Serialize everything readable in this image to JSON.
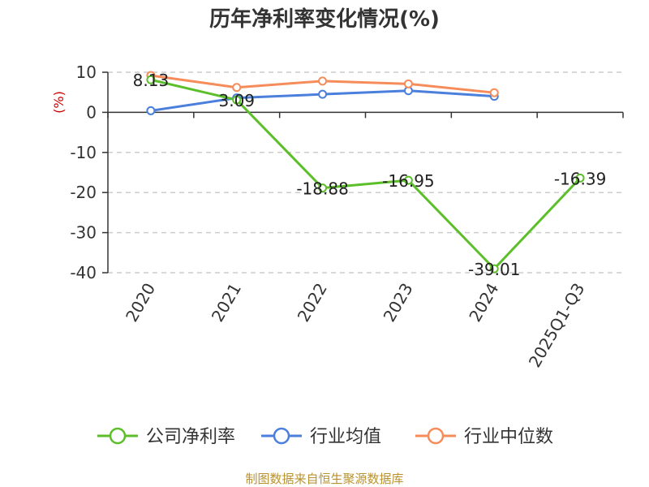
{
  "chart_data": {
    "type": "line",
    "title": "历年净利率变化情况(%)",
    "ylabel": "(%)",
    "categories": [
      "2020",
      "2021",
      "2022",
      "2023",
      "2024",
      "2025Q1-Q3"
    ],
    "ylim": [
      -40,
      10
    ],
    "yticks": [
      10,
      0,
      -10,
      -20,
      -30,
      -40
    ],
    "grid": true,
    "legend_position": "bottom",
    "series": [
      {
        "name": "公司净利率",
        "color": "#5cbf2a",
        "values": [
          8.13,
          3.09,
          -18.88,
          -16.95,
          -39.01,
          -16.39
        ],
        "labels": [
          "8.13",
          "3.09",
          "-18.88",
          "-16.95",
          "-39.01",
          "-16.39"
        ]
      },
      {
        "name": "行业均值",
        "color": "#4a7fdc",
        "values": [
          0.4,
          3.6,
          4.5,
          5.4,
          4.0,
          null
        ]
      },
      {
        "name": "行业中位数",
        "color": "#f58c5a",
        "values": [
          9.2,
          6.2,
          7.8,
          7.1,
          4.9,
          null
        ]
      }
    ]
  },
  "source": "制图数据来自恒生聚源数据库"
}
